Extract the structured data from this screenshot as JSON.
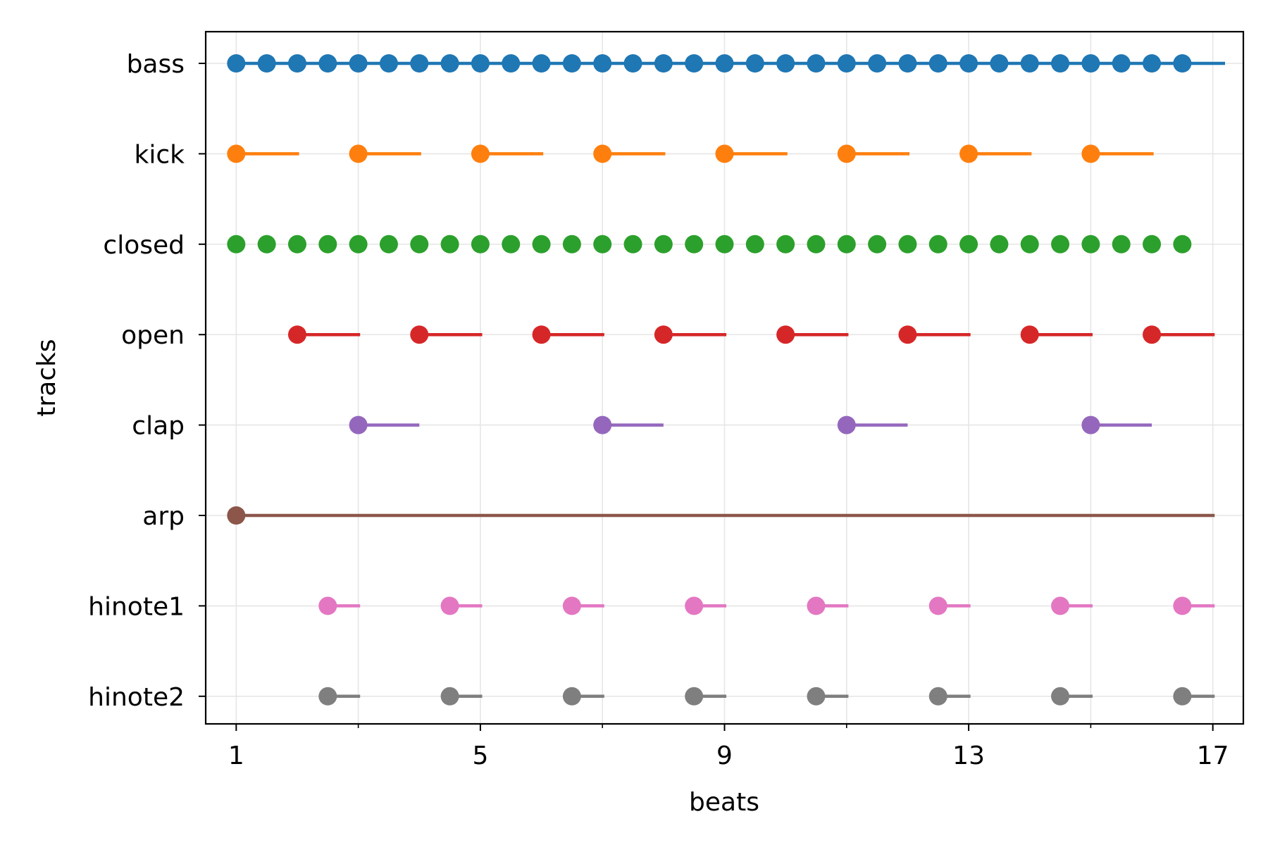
{
  "chart_data": {
    "type": "scatter",
    "xlabel": "beats",
    "ylabel": "tracks",
    "xlim": [
      0.5,
      17.5
    ],
    "x_ticks": [
      1,
      5,
      9,
      13,
      17
    ],
    "x_minor_ticks": [
      3,
      7,
      11,
      15
    ],
    "x_tick_labels": [
      "1",
      "5",
      "9",
      "13",
      "17"
    ],
    "grid": true,
    "categories": [
      "bass",
      "kick",
      "closed",
      "open",
      "clap",
      "arp",
      "hinote1",
      "hinote2"
    ],
    "series": [
      {
        "track": "bass",
        "color": "#1f77b4",
        "notes": [
          [
            1,
            0.5
          ],
          [
            1.5,
            0.5
          ],
          [
            2,
            0.5
          ],
          [
            2.5,
            0.5
          ],
          [
            3,
            0.5
          ],
          [
            3.5,
            0.5
          ],
          [
            4,
            0.5
          ],
          [
            4.5,
            0.5
          ],
          [
            5,
            0.5
          ],
          [
            5.5,
            0.5
          ],
          [
            6,
            0.5
          ],
          [
            6.5,
            0.5
          ],
          [
            7,
            0.5
          ],
          [
            7.5,
            0.5
          ],
          [
            8,
            0.5
          ],
          [
            8.5,
            0.5
          ],
          [
            9,
            0.5
          ],
          [
            9.5,
            0.5
          ],
          [
            10,
            0.5
          ],
          [
            10.5,
            0.5
          ],
          [
            11,
            0.5
          ],
          [
            11.5,
            0.5
          ],
          [
            12,
            0.5
          ],
          [
            12.5,
            0.5
          ],
          [
            13,
            0.5
          ],
          [
            13.5,
            0.5
          ],
          [
            14,
            0.5
          ],
          [
            14.5,
            0.5
          ],
          [
            15,
            0.5
          ],
          [
            15.5,
            0.5
          ],
          [
            16,
            0.5
          ],
          [
            16.5,
            0.7
          ]
        ]
      },
      {
        "track": "kick",
        "color": "#ff7f0e",
        "notes": [
          [
            1,
            1.03
          ],
          [
            3,
            1.03
          ],
          [
            5,
            1.03
          ],
          [
            7,
            1.03
          ],
          [
            9,
            1.03
          ],
          [
            11,
            1.03
          ],
          [
            13,
            1.03
          ],
          [
            15,
            1.03
          ]
        ]
      },
      {
        "track": "closed",
        "color": "#2ca02c",
        "notes": [
          [
            1,
            0.1
          ],
          [
            1.5,
            0.1
          ],
          [
            2,
            0.1
          ],
          [
            2.5,
            0.1
          ],
          [
            3,
            0.1
          ],
          [
            3.5,
            0.1
          ],
          [
            4,
            0.1
          ],
          [
            4.5,
            0.1
          ],
          [
            5,
            0.1
          ],
          [
            5.5,
            0.1
          ],
          [
            6,
            0.1
          ],
          [
            6.5,
            0.1
          ],
          [
            7,
            0.1
          ],
          [
            7.5,
            0.1
          ],
          [
            8,
            0.1
          ],
          [
            8.5,
            0.1
          ],
          [
            9,
            0.1
          ],
          [
            9.5,
            0.1
          ],
          [
            10,
            0.1
          ],
          [
            10.5,
            0.1
          ],
          [
            11,
            0.1
          ],
          [
            11.5,
            0.1
          ],
          [
            12,
            0.1
          ],
          [
            12.5,
            0.1
          ],
          [
            13,
            0.1
          ],
          [
            13.5,
            0.1
          ],
          [
            14,
            0.1
          ],
          [
            14.5,
            0.1
          ],
          [
            15,
            0.1
          ],
          [
            15.5,
            0.1
          ],
          [
            16,
            0.1
          ],
          [
            16.5,
            0.1
          ]
        ]
      },
      {
        "track": "open",
        "color": "#d62728",
        "notes": [
          [
            2,
            1.03
          ],
          [
            4,
            1.03
          ],
          [
            6,
            1.03
          ],
          [
            8,
            1.03
          ],
          [
            10,
            1.03
          ],
          [
            12,
            1.03
          ],
          [
            14,
            1.03
          ],
          [
            16,
            1.03
          ]
        ]
      },
      {
        "track": "clap",
        "color": "#9467bd",
        "notes": [
          [
            3,
            1.0
          ],
          [
            7,
            1.0
          ],
          [
            11,
            1.0
          ],
          [
            15,
            1.0
          ]
        ]
      },
      {
        "track": "arp",
        "color": "#8c564b",
        "notes": [
          [
            1,
            16.03
          ]
        ]
      },
      {
        "track": "hinote1",
        "color": "#e377c2",
        "notes": [
          [
            2.5,
            0.53
          ],
          [
            4.5,
            0.53
          ],
          [
            6.5,
            0.53
          ],
          [
            8.5,
            0.53
          ],
          [
            10.5,
            0.53
          ],
          [
            12.5,
            0.53
          ],
          [
            14.5,
            0.53
          ],
          [
            16.5,
            0.53
          ]
        ]
      },
      {
        "track": "hinote2",
        "color": "#7f7f7f",
        "notes": [
          [
            2.5,
            0.53
          ],
          [
            4.5,
            0.53
          ],
          [
            6.5,
            0.53
          ],
          [
            8.5,
            0.53
          ],
          [
            10.5,
            0.53
          ],
          [
            12.5,
            0.53
          ],
          [
            14.5,
            0.53
          ],
          [
            16.5,
            0.53
          ]
        ]
      }
    ]
  }
}
